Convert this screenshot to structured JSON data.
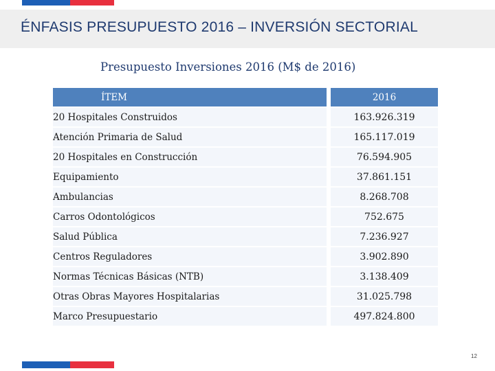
{
  "colors": {
    "flag_blue": "#1d5fb6",
    "flag_red": "#e8303f",
    "table_header": "#4f81bd"
  },
  "header": {
    "title": "ÉNFASIS PRESUPUESTO 2016 – INVERSIÓN SECTORIAL"
  },
  "subtitle": "Presupuesto Inversiones 2016 (M$ de 2016)",
  "table": {
    "columns": [
      "ÍTEM",
      "2016"
    ],
    "rows": [
      {
        "item": "20 Hospitales Construidos",
        "value": "163.926.319"
      },
      {
        "item": "Atención Primaria de Salud",
        "value": "165.117.019"
      },
      {
        "item": "20 Hospitales en Construcción",
        "value": "76.594.905"
      },
      {
        "item": "Equipamiento",
        "value": "37.861.151"
      },
      {
        "item": "Ambulancias",
        "value": "8.268.708"
      },
      {
        "item": "Carros Odontológicos",
        "value": "752.675"
      },
      {
        "item": "Salud Pública",
        "value": "7.236.927"
      },
      {
        "item": "Centros Reguladores",
        "value": "3.902.890"
      },
      {
        "item": "Normas Técnicas Básicas (NTB)",
        "value": "3.138.409"
      },
      {
        "item": "Otras Obras Mayores Hospitalarias",
        "value": "31.025.798"
      },
      {
        "item": "Marco Presupuestario",
        "value": "497.824.800"
      }
    ]
  },
  "page_number": "12"
}
